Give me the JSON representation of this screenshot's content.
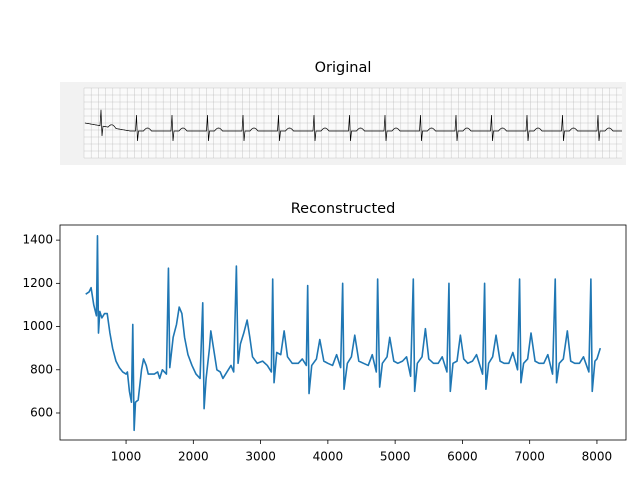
{
  "original_panel": {
    "title": "Original"
  },
  "chart_data": {
    "type": "line",
    "title": "Reconstructed",
    "xlim": [
      18,
      8432
    ],
    "ylim": [
      475,
      1470
    ],
    "xticks": [
      1000,
      2000,
      3000,
      4000,
      5000,
      6000,
      7000,
      8000
    ],
    "yticks": [
      600,
      800,
      1000,
      1200,
      1400
    ],
    "grid": false,
    "series": [
      {
        "color": "#1f77b4",
        "x": [
          400,
          450,
          480,
          520,
          560,
          575,
          590,
          610,
          640,
          680,
          720,
          760,
          800,
          850,
          900,
          950,
          1000,
          1020,
          1050,
          1080,
          1100,
          1120,
          1140,
          1180,
          1230,
          1260,
          1300,
          1330,
          1380,
          1420,
          1470,
          1500,
          1540,
          1600,
          1630,
          1650,
          1700,
          1750,
          1790,
          1830,
          1870,
          1920,
          1980,
          2040,
          2100,
          2140,
          2160,
          2190,
          2240,
          2260,
          2300,
          2350,
          2400,
          2440,
          2500,
          2560,
          2600,
          2640,
          2665,
          2700,
          2750,
          2800,
          2840,
          2880,
          2950,
          3030,
          3100,
          3160,
          3180,
          3200,
          3240,
          3300,
          3350,
          3400,
          3470,
          3560,
          3620,
          3680,
          3700,
          3720,
          3760,
          3830,
          3880,
          3940,
          4000,
          4070,
          4130,
          4190,
          4220,
          4240,
          4290,
          4350,
          4400,
          4460,
          4530,
          4600,
          4660,
          4720,
          4740,
          4770,
          4810,
          4880,
          4920,
          4980,
          5040,
          5110,
          5170,
          5230,
          5270,
          5290,
          5330,
          5400,
          5450,
          5500,
          5570,
          5640,
          5700,
          5770,
          5800,
          5820,
          5860,
          5920,
          5970,
          6020,
          6080,
          6150,
          6210,
          6300,
          6330,
          6350,
          6390,
          6450,
          6500,
          6560,
          6620,
          6690,
          6750,
          6820,
          6850,
          6870,
          6910,
          6970,
          7020,
          7080,
          7140,
          7210,
          7270,
          7340,
          7380,
          7400,
          7440,
          7500,
          7560,
          7610,
          7670,
          7740,
          7800,
          7880,
          7910,
          7930,
          7970,
          8000,
          8050
        ],
        "values": [
          1150,
          1160,
          1180,
          1100,
          1050,
          1420,
          970,
          1070,
          1040,
          1060,
          1060,
          970,
          900,
          840,
          810,
          790,
          780,
          790,
          700,
          650,
          1010,
          520,
          650,
          660,
          800,
          850,
          820,
          780,
          780,
          780,
          790,
          760,
          800,
          780,
          1270,
          810,
          950,
          1010,
          1090,
          1060,
          950,
          870,
          820,
          780,
          760,
          1110,
          620,
          760,
          900,
          980,
          900,
          800,
          790,
          760,
          790,
          820,
          790,
          1280,
          830,
          920,
          970,
          1030,
          950,
          860,
          830,
          840,
          820,
          790,
          1220,
          740,
          880,
          870,
          980,
          860,
          830,
          830,
          850,
          820,
          1190,
          690,
          820,
          850,
          940,
          840,
          830,
          820,
          870,
          810,
          1200,
          710,
          830,
          860,
          960,
          840,
          830,
          820,
          870,
          790,
          1220,
          720,
          830,
          860,
          950,
          840,
          830,
          840,
          860,
          770,
          1220,
          700,
          830,
          860,
          990,
          850,
          830,
          830,
          860,
          790,
          1200,
          700,
          830,
          840,
          960,
          850,
          830,
          840,
          870,
          780,
          1200,
          710,
          830,
          860,
          960,
          840,
          830,
          830,
          880,
          800,
          1220,
          740,
          830,
          850,
          970,
          840,
          830,
          830,
          870,
          780,
          1220,
          740,
          830,
          850,
          980,
          840,
          830,
          830,
          860,
          790,
          1220,
          700,
          840,
          850,
          900
        ]
      }
    ]
  }
}
